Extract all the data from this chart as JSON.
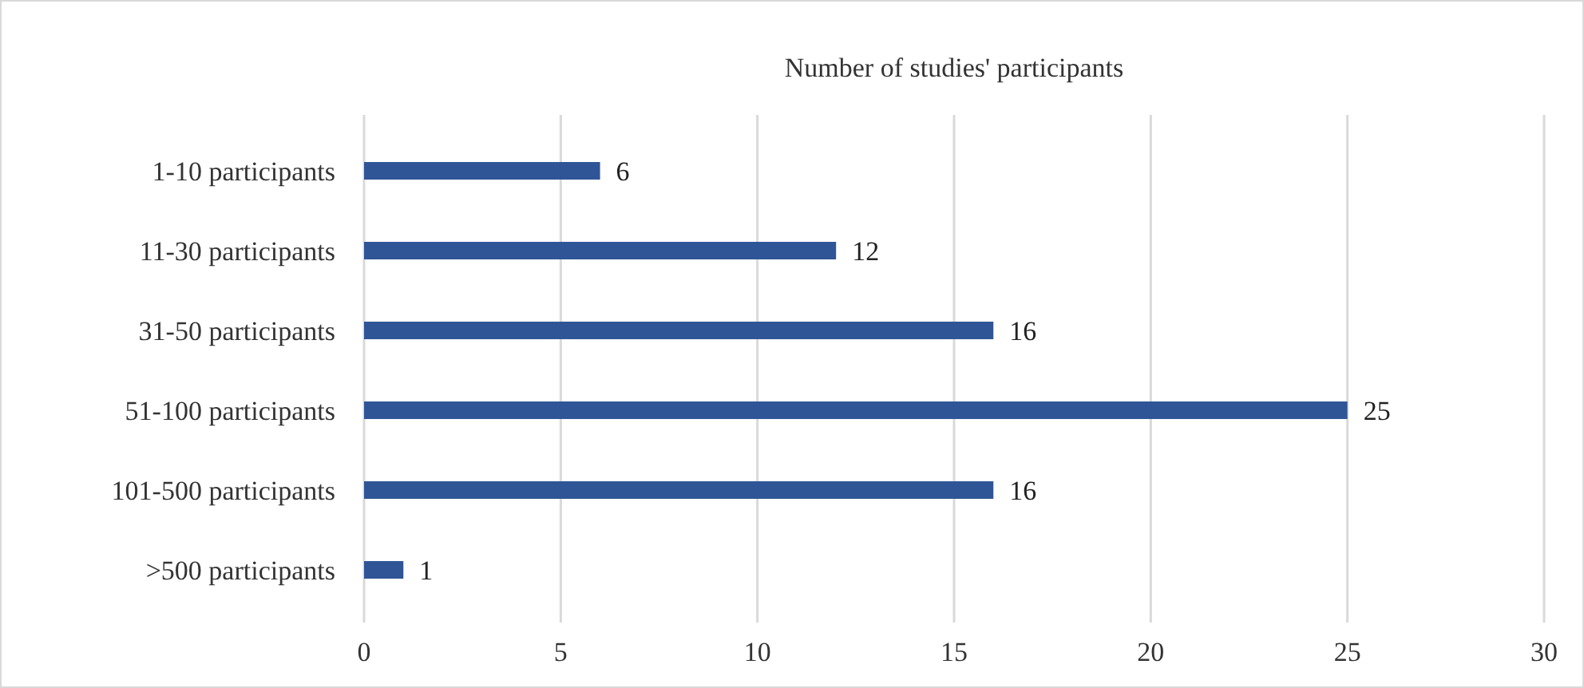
{
  "chart_data": {
    "type": "bar",
    "orientation": "horizontal",
    "title": "Number of studies' participants",
    "categories": [
      "1-10 participants",
      "11-30 participants",
      "31-50 participants",
      "51-100 participants",
      "101-500 participants",
      ">500 participants"
    ],
    "values": [
      6,
      12,
      16,
      25,
      16,
      1
    ],
    "color": "#2f5597",
    "data_labels": true,
    "xlim": [
      0,
      30
    ],
    "xticks": [
      0,
      5,
      10,
      15,
      20,
      25,
      30
    ],
    "grid": "x"
  }
}
